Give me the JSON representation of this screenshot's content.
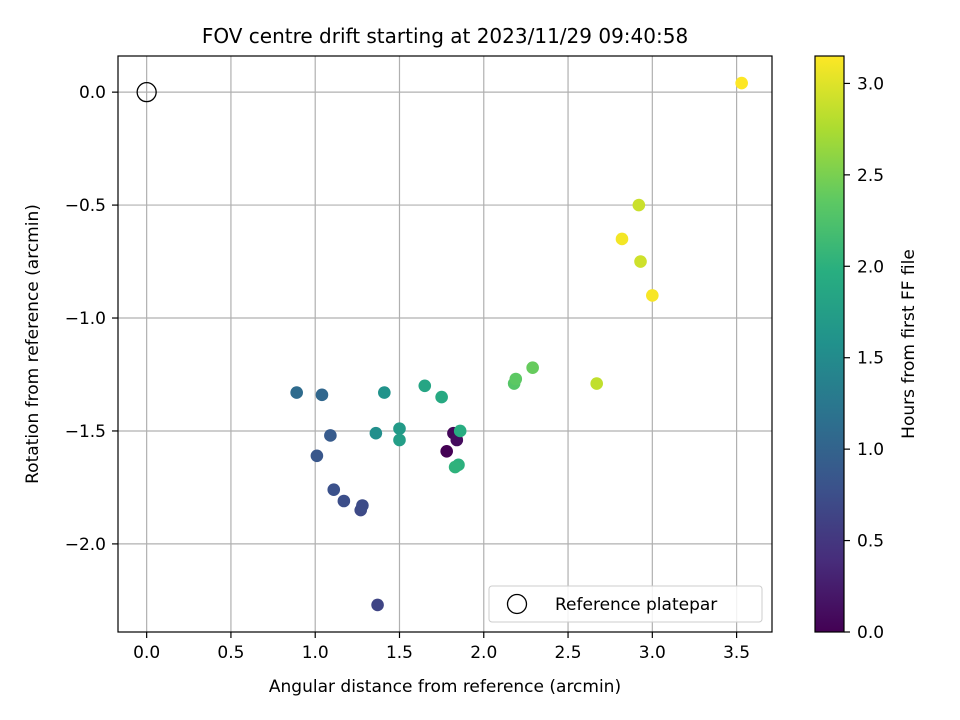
{
  "chart_data": {
    "type": "scatter",
    "title": "FOV centre drift starting at 2023/11/29 09:40:58",
    "xlabel": "Angular distance from reference (arcmin)",
    "ylabel": "Rotation from reference (arcmin)",
    "xlim": [
      -0.17,
      3.71
    ],
    "ylim": [
      -2.39,
      0.16
    ],
    "xticks": [
      0.0,
      0.5,
      1.0,
      1.5,
      2.0,
      2.5,
      3.0,
      3.5
    ],
    "yticks": [
      0.0,
      -0.5,
      -1.0,
      -1.5,
      -2.0
    ],
    "xtick_labels": [
      "0.0",
      "0.5",
      "1.0",
      "1.5",
      "2.0",
      "2.5",
      "3.0",
      "3.5"
    ],
    "ytick_labels": [
      "0.0",
      "−0.5",
      "−1.0",
      "−1.5",
      "−2.0"
    ],
    "grid": true,
    "colormap": "viridis",
    "colorbar": {
      "label": "Hours from first FF file",
      "range": [
        0.0,
        3.15
      ],
      "ticks": [
        0.0,
        0.5,
        1.0,
        1.5,
        2.0,
        2.5,
        3.0
      ],
      "tick_labels": [
        "0.0",
        "0.5",
        "1.0",
        "1.5",
        "2.0",
        "2.5",
        "3.0"
      ]
    },
    "reference": {
      "x": 0.0,
      "y": 0.0,
      "label": "Reference platepar"
    },
    "legend": {
      "position": "lower-right",
      "entries": [
        "Reference platepar"
      ]
    },
    "points": [
      {
        "x": 1.78,
        "y": -1.59,
        "c": 0.0
      },
      {
        "x": 1.82,
        "y": -1.51,
        "c": 0.05
      },
      {
        "x": 1.84,
        "y": -1.54,
        "c": 0.1
      },
      {
        "x": 1.37,
        "y": -2.27,
        "c": 0.65
      },
      {
        "x": 1.27,
        "y": -1.85,
        "c": 0.7
      },
      {
        "x": 1.28,
        "y": -1.83,
        "c": 0.72
      },
      {
        "x": 1.17,
        "y": -1.81,
        "c": 0.75
      },
      {
        "x": 1.11,
        "y": -1.76,
        "c": 0.78
      },
      {
        "x": 1.01,
        "y": -1.61,
        "c": 0.85
      },
      {
        "x": 1.09,
        "y": -1.52,
        "c": 0.9
      },
      {
        "x": 1.04,
        "y": -1.34,
        "c": 1.05
      },
      {
        "x": 0.89,
        "y": -1.33,
        "c": 1.1
      },
      {
        "x": 1.36,
        "y": -1.51,
        "c": 1.55
      },
      {
        "x": 1.41,
        "y": -1.33,
        "c": 1.6
      },
      {
        "x": 1.5,
        "y": -1.49,
        "c": 1.7
      },
      {
        "x": 1.5,
        "y": -1.54,
        "c": 1.75
      },
      {
        "x": 1.65,
        "y": -1.3,
        "c": 1.85
      },
      {
        "x": 1.75,
        "y": -1.35,
        "c": 1.9
      },
      {
        "x": 1.86,
        "y": -1.5,
        "c": 1.95
      },
      {
        "x": 1.85,
        "y": -1.65,
        "c": 2.0
      },
      {
        "x": 1.83,
        "y": -1.66,
        "c": 2.02
      },
      {
        "x": 2.18,
        "y": -1.29,
        "c": 2.3
      },
      {
        "x": 2.19,
        "y": -1.27,
        "c": 2.35
      },
      {
        "x": 2.29,
        "y": -1.22,
        "c": 2.4
      },
      {
        "x": 2.67,
        "y": -1.29,
        "c": 2.85
      },
      {
        "x": 2.92,
        "y": -0.5,
        "c": 2.9
      },
      {
        "x": 2.93,
        "y": -0.75,
        "c": 2.92
      },
      {
        "x": 2.82,
        "y": -0.65,
        "c": 3.1
      },
      {
        "x": 3.0,
        "y": -0.9,
        "c": 3.12
      },
      {
        "x": 3.53,
        "y": 0.04,
        "c": 3.15
      }
    ]
  }
}
